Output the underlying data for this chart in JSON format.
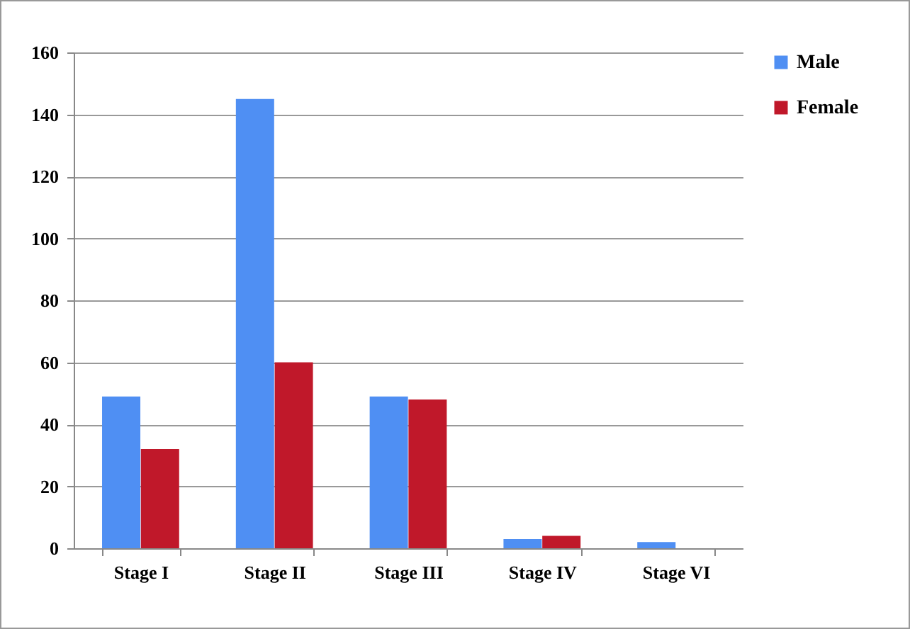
{
  "chart_data": {
    "type": "bar",
    "categories": [
      "Stage I",
      "Stage II",
      "Stage III",
      "Stage IV",
      "Stage VI"
    ],
    "series": [
      {
        "name": "Male",
        "color": "#4f8ff3",
        "values": [
          49,
          145,
          49,
          3,
          2
        ]
      },
      {
        "name": "Female",
        "color": "#c0182a",
        "values": [
          32,
          60,
          48,
          4,
          0
        ]
      }
    ],
    "ylim": [
      0,
      160
    ],
    "yticks": [
      0,
      20,
      40,
      60,
      80,
      100,
      120,
      140,
      160
    ],
    "grid": "y",
    "legend": "right"
  }
}
